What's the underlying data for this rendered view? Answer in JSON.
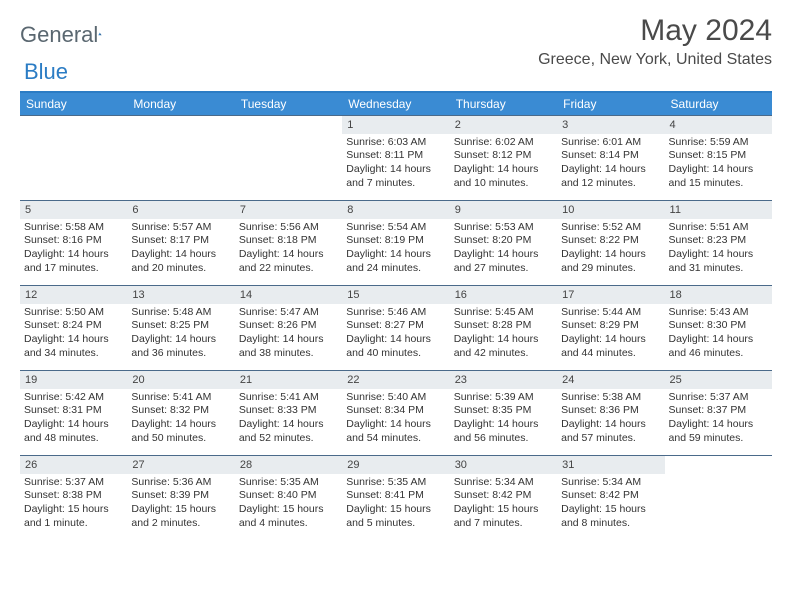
{
  "brand": {
    "part1": "General",
    "part2": "Blue"
  },
  "title": "May 2024",
  "location": "Greece, New York, United States",
  "header_bg": "#3a8bd3",
  "accent": "#2b7cc4",
  "daynum_bg": "#e8ecef",
  "text_color": "#333333",
  "fontsize_title": 30,
  "fontsize_location": 16,
  "fontsize_dow": 12,
  "fontsize_cell": 10.5,
  "dow": [
    "Sunday",
    "Monday",
    "Tuesday",
    "Wednesday",
    "Thursday",
    "Friday",
    "Saturday"
  ],
  "weeks": [
    [
      null,
      null,
      null,
      {
        "d": "1",
        "sr": "Sunrise: 6:03 AM",
        "ss": "Sunset: 8:11 PM",
        "dl1": "Daylight: 14 hours",
        "dl2": "and 7 minutes."
      },
      {
        "d": "2",
        "sr": "Sunrise: 6:02 AM",
        "ss": "Sunset: 8:12 PM",
        "dl1": "Daylight: 14 hours",
        "dl2": "and 10 minutes."
      },
      {
        "d": "3",
        "sr": "Sunrise: 6:01 AM",
        "ss": "Sunset: 8:14 PM",
        "dl1": "Daylight: 14 hours",
        "dl2": "and 12 minutes."
      },
      {
        "d": "4",
        "sr": "Sunrise: 5:59 AM",
        "ss": "Sunset: 8:15 PM",
        "dl1": "Daylight: 14 hours",
        "dl2": "and 15 minutes."
      }
    ],
    [
      {
        "d": "5",
        "sr": "Sunrise: 5:58 AM",
        "ss": "Sunset: 8:16 PM",
        "dl1": "Daylight: 14 hours",
        "dl2": "and 17 minutes."
      },
      {
        "d": "6",
        "sr": "Sunrise: 5:57 AM",
        "ss": "Sunset: 8:17 PM",
        "dl1": "Daylight: 14 hours",
        "dl2": "and 20 minutes."
      },
      {
        "d": "7",
        "sr": "Sunrise: 5:56 AM",
        "ss": "Sunset: 8:18 PM",
        "dl1": "Daylight: 14 hours",
        "dl2": "and 22 minutes."
      },
      {
        "d": "8",
        "sr": "Sunrise: 5:54 AM",
        "ss": "Sunset: 8:19 PM",
        "dl1": "Daylight: 14 hours",
        "dl2": "and 24 minutes."
      },
      {
        "d": "9",
        "sr": "Sunrise: 5:53 AM",
        "ss": "Sunset: 8:20 PM",
        "dl1": "Daylight: 14 hours",
        "dl2": "and 27 minutes."
      },
      {
        "d": "10",
        "sr": "Sunrise: 5:52 AM",
        "ss": "Sunset: 8:22 PM",
        "dl1": "Daylight: 14 hours",
        "dl2": "and 29 minutes."
      },
      {
        "d": "11",
        "sr": "Sunrise: 5:51 AM",
        "ss": "Sunset: 8:23 PM",
        "dl1": "Daylight: 14 hours",
        "dl2": "and 31 minutes."
      }
    ],
    [
      {
        "d": "12",
        "sr": "Sunrise: 5:50 AM",
        "ss": "Sunset: 8:24 PM",
        "dl1": "Daylight: 14 hours",
        "dl2": "and 34 minutes."
      },
      {
        "d": "13",
        "sr": "Sunrise: 5:48 AM",
        "ss": "Sunset: 8:25 PM",
        "dl1": "Daylight: 14 hours",
        "dl2": "and 36 minutes."
      },
      {
        "d": "14",
        "sr": "Sunrise: 5:47 AM",
        "ss": "Sunset: 8:26 PM",
        "dl1": "Daylight: 14 hours",
        "dl2": "and 38 minutes."
      },
      {
        "d": "15",
        "sr": "Sunrise: 5:46 AM",
        "ss": "Sunset: 8:27 PM",
        "dl1": "Daylight: 14 hours",
        "dl2": "and 40 minutes."
      },
      {
        "d": "16",
        "sr": "Sunrise: 5:45 AM",
        "ss": "Sunset: 8:28 PM",
        "dl1": "Daylight: 14 hours",
        "dl2": "and 42 minutes."
      },
      {
        "d": "17",
        "sr": "Sunrise: 5:44 AM",
        "ss": "Sunset: 8:29 PM",
        "dl1": "Daylight: 14 hours",
        "dl2": "and 44 minutes."
      },
      {
        "d": "18",
        "sr": "Sunrise: 5:43 AM",
        "ss": "Sunset: 8:30 PM",
        "dl1": "Daylight: 14 hours",
        "dl2": "and 46 minutes."
      }
    ],
    [
      {
        "d": "19",
        "sr": "Sunrise: 5:42 AM",
        "ss": "Sunset: 8:31 PM",
        "dl1": "Daylight: 14 hours",
        "dl2": "and 48 minutes."
      },
      {
        "d": "20",
        "sr": "Sunrise: 5:41 AM",
        "ss": "Sunset: 8:32 PM",
        "dl1": "Daylight: 14 hours",
        "dl2": "and 50 minutes."
      },
      {
        "d": "21",
        "sr": "Sunrise: 5:41 AM",
        "ss": "Sunset: 8:33 PM",
        "dl1": "Daylight: 14 hours",
        "dl2": "and 52 minutes."
      },
      {
        "d": "22",
        "sr": "Sunrise: 5:40 AM",
        "ss": "Sunset: 8:34 PM",
        "dl1": "Daylight: 14 hours",
        "dl2": "and 54 minutes."
      },
      {
        "d": "23",
        "sr": "Sunrise: 5:39 AM",
        "ss": "Sunset: 8:35 PM",
        "dl1": "Daylight: 14 hours",
        "dl2": "and 56 minutes."
      },
      {
        "d": "24",
        "sr": "Sunrise: 5:38 AM",
        "ss": "Sunset: 8:36 PM",
        "dl1": "Daylight: 14 hours",
        "dl2": "and 57 minutes."
      },
      {
        "d": "25",
        "sr": "Sunrise: 5:37 AM",
        "ss": "Sunset: 8:37 PM",
        "dl1": "Daylight: 14 hours",
        "dl2": "and 59 minutes."
      }
    ],
    [
      {
        "d": "26",
        "sr": "Sunrise: 5:37 AM",
        "ss": "Sunset: 8:38 PM",
        "dl1": "Daylight: 15 hours",
        "dl2": "and 1 minute."
      },
      {
        "d": "27",
        "sr": "Sunrise: 5:36 AM",
        "ss": "Sunset: 8:39 PM",
        "dl1": "Daylight: 15 hours",
        "dl2": "and 2 minutes."
      },
      {
        "d": "28",
        "sr": "Sunrise: 5:35 AM",
        "ss": "Sunset: 8:40 PM",
        "dl1": "Daylight: 15 hours",
        "dl2": "and 4 minutes."
      },
      {
        "d": "29",
        "sr": "Sunrise: 5:35 AM",
        "ss": "Sunset: 8:41 PM",
        "dl1": "Daylight: 15 hours",
        "dl2": "and 5 minutes."
      },
      {
        "d": "30",
        "sr": "Sunrise: 5:34 AM",
        "ss": "Sunset: 8:42 PM",
        "dl1": "Daylight: 15 hours",
        "dl2": "and 7 minutes."
      },
      {
        "d": "31",
        "sr": "Sunrise: 5:34 AM",
        "ss": "Sunset: 8:42 PM",
        "dl1": "Daylight: 15 hours",
        "dl2": "and 8 minutes."
      },
      null
    ]
  ]
}
